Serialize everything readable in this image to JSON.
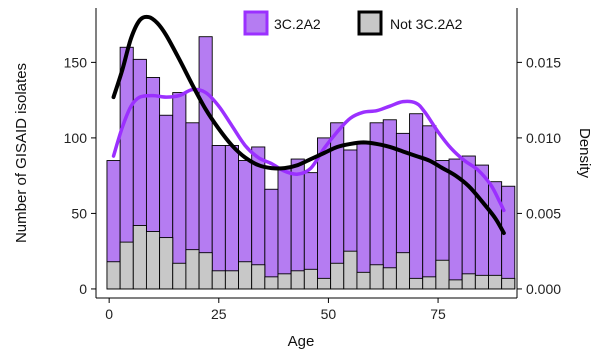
{
  "chart_data": {
    "type": "bar",
    "title": "",
    "xlabel": "Age",
    "ylabel": "Number of GISAID isolates",
    "ylabel_right": "Density",
    "xlim": [
      -3,
      93
    ],
    "ylim": [
      -6,
      186
    ],
    "ylim_right": [
      -0.0006,
      0.0186
    ],
    "x_ticks": [
      0,
      25,
      50,
      75
    ],
    "x_tick_labels": [
      "0",
      "25",
      "50",
      "75"
    ],
    "y_ticks": [
      0,
      50,
      100,
      150
    ],
    "y_tick_labels": [
      "0",
      "50",
      "100",
      "150"
    ],
    "y_right_ticks": [
      0,
      0.005,
      0.01,
      0.015
    ],
    "y_right_tick_labels": [
      "0.000",
      "0.005",
      "0.010",
      "0.015"
    ],
    "grid": false,
    "legend_position": "top-right",
    "bar_width": 3,
    "x": [
      1,
      4,
      7,
      10,
      13,
      16,
      19,
      22,
      25,
      28,
      31,
      34,
      37,
      40,
      43,
      46,
      49,
      52,
      55,
      58,
      61,
      64,
      67,
      70,
      73,
      76,
      79,
      82,
      85,
      88,
      91
    ],
    "series": [
      {
        "name": "3C.2A2",
        "color": "#b57cf2",
        "stroke": "#000000",
        "values": [
          85,
          160,
          152,
          140,
          115,
          130,
          110,
          167,
          95,
          95,
          85,
          94,
          66,
          80,
          86,
          77,
          100,
          110,
          92,
          96,
          110,
          112,
          103,
          116,
          108,
          85,
          86,
          88,
          82,
          71,
          68
        ]
      },
      {
        "name": "Not 3C.2A2",
        "color": "#c8c8c8",
        "stroke": "#000000",
        "values": [
          18,
          31,
          42,
          38,
          34,
          17,
          26,
          24,
          12,
          12,
          18,
          16,
          8,
          10,
          12,
          13,
          7,
          17,
          25,
          11,
          16,
          14,
          24,
          7,
          8,
          19,
          6,
          10,
          9,
          9,
          7
        ]
      }
    ],
    "density_curves": [
      {
        "series": "3C.2A2",
        "color": "#9b30ff",
        "x": [
          1,
          3,
          5,
          7,
          10,
          13,
          16,
          19,
          22,
          25,
          28,
          31,
          34,
          37,
          40,
          43,
          46,
          49,
          52,
          55,
          58,
          61,
          64,
          67,
          70,
          72,
          75,
          78,
          81,
          84,
          87,
          89,
          90
        ],
        "y": [
          0.0088,
          0.0107,
          0.0121,
          0.0127,
          0.0128,
          0.0127,
          0.0128,
          0.0132,
          0.013,
          0.0121,
          0.0108,
          0.0095,
          0.0087,
          0.0083,
          0.0078,
          0.0076,
          0.008,
          0.0093,
          0.0104,
          0.0113,
          0.0117,
          0.0118,
          0.0121,
          0.0124,
          0.0123,
          0.0117,
          0.0104,
          0.0093,
          0.0085,
          0.0079,
          0.0069,
          0.0058,
          0.0052
        ]
      },
      {
        "series": "Not 3C.2A2",
        "color": "#000000",
        "x": [
          1,
          3,
          5,
          7,
          9,
          11,
          13,
          16,
          19,
          22,
          25,
          28,
          31,
          34,
          37,
          40,
          43,
          46,
          49,
          52,
          55,
          58,
          61,
          64,
          67,
          70,
          73,
          76,
          79,
          82,
          85,
          88,
          90
        ],
        "y": [
          0.0127,
          0.0145,
          0.0166,
          0.0178,
          0.018,
          0.0176,
          0.0168,
          0.0152,
          0.0135,
          0.0119,
          0.0106,
          0.0095,
          0.0087,
          0.0082,
          0.008,
          0.008,
          0.0082,
          0.0086,
          0.009,
          0.0094,
          0.0096,
          0.0097,
          0.0096,
          0.0094,
          0.0091,
          0.0088,
          0.0085,
          0.008,
          0.0075,
          0.0068,
          0.0058,
          0.0047,
          0.0037
        ]
      }
    ]
  }
}
